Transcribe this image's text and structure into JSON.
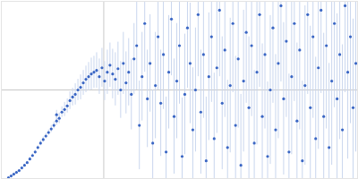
{
  "chart_data": {
    "type": "scatter",
    "color": "#3a66c4",
    "error_color": "#c9d6ee",
    "marker": "circle",
    "xlim": [
      0,
      400
    ],
    "ylim": [
      0,
      200
    ],
    "xticks": [
      115
    ],
    "yticks": [
      100
    ],
    "grid": true,
    "tick_labels": false,
    "x": [
      8,
      11,
      14,
      17,
      20,
      23,
      26,
      29,
      32,
      35,
      38,
      41,
      44,
      47,
      50,
      53,
      56,
      59,
      62,
      62,
      65,
      68,
      71,
      74,
      77,
      80,
      83,
      86,
      89,
      92,
      95,
      98,
      101,
      104,
      107,
      110,
      113,
      116,
      119,
      122,
      125,
      128,
      131,
      134,
      137,
      140,
      143,
      146,
      149,
      152,
      155,
      158,
      161,
      164,
      167,
      170,
      173,
      176,
      179,
      182,
      185,
      188,
      191,
      194,
      197,
      200,
      203,
      206,
      209,
      212,
      215,
      218,
      221,
      224,
      227,
      230,
      233,
      236,
      239,
      242,
      245,
      248,
      251,
      254,
      257,
      260,
      263,
      266,
      269,
      272,
      275,
      278,
      281,
      284,
      287,
      290,
      293,
      296,
      299,
      302,
      305,
      308,
      311,
      314,
      317,
      320,
      323,
      326,
      329,
      332,
      335,
      338,
      341,
      344,
      347,
      350,
      353,
      356,
      359,
      362,
      365,
      368,
      371,
      374,
      377,
      380,
      383,
      386,
      389,
      392,
      395,
      398
    ],
    "values": [
      1,
      3,
      5,
      7,
      9,
      12,
      15,
      18,
      22,
      26,
      30,
      35,
      40,
      44,
      48,
      52,
      56,
      60,
      65,
      72,
      68,
      75,
      78,
      82,
      88,
      92,
      95,
      100,
      103,
      108,
      112,
      115,
      118,
      120,
      122,
      115,
      125,
      110,
      120,
      128,
      118,
      112,
      124,
      100,
      130,
      108,
      120,
      95,
      135,
      150,
      60,
      115,
      175,
      90,
      130,
      40,
      105,
      160,
      85,
      140,
      30,
      120,
      180,
      70,
      110,
      150,
      25,
      95,
      170,
      130,
      55,
      100,
      185,
      75,
      140,
      20,
      115,
      160,
      45,
      125,
      190,
      85,
      145,
      35,
      105,
      175,
      60,
      135,
      15,
      110,
      165,
      80,
      150,
      40,
      120,
      185,
      70,
      140,
      25,
      100,
      170,
      55,
      130,
      195,
      90,
      155,
      30,
      115,
      175,
      65,
      145,
      20,
      105,
      185,
      80,
      160,
      45,
      125,
      190,
      70,
      150,
      35,
      110,
      175,
      90,
      140,
      55,
      195,
      120,
      160,
      80,
      130
    ],
    "errors": [
      0.5,
      0.5,
      1,
      1,
      1,
      1,
      1,
      1.5,
      2,
      2,
      2,
      2,
      3,
      3,
      3,
      3,
      4,
      4,
      5,
      5,
      6,
      6,
      8,
      8,
      10,
      10,
      12,
      12,
      14,
      14,
      15,
      16,
      18,
      18,
      20,
      20,
      22,
      22,
      25,
      25,
      28,
      30,
      30,
      32,
      35,
      35,
      38,
      40,
      40,
      50,
      50,
      50,
      55,
      55,
      55,
      60,
      60,
      60,
      60,
      62,
      62,
      64,
      64,
      65,
      65,
      66,
      66,
      68,
      68,
      68,
      70,
      70,
      70,
      70,
      72,
      72,
      72,
      74,
      74,
      74,
      75,
      75,
      76,
      76,
      76,
      78,
      78,
      78,
      80,
      80,
      80,
      80,
      80,
      82,
      82,
      82,
      82,
      84,
      84,
      84,
      85,
      85,
      85,
      86,
      86,
      86,
      88,
      88,
      88,
      88,
      90,
      90,
      90,
      90,
      92,
      92,
      92,
      92,
      94,
      94,
      94,
      95,
      95,
      95,
      96,
      96,
      96,
      98,
      98,
      98,
      100,
      100
    ]
  }
}
